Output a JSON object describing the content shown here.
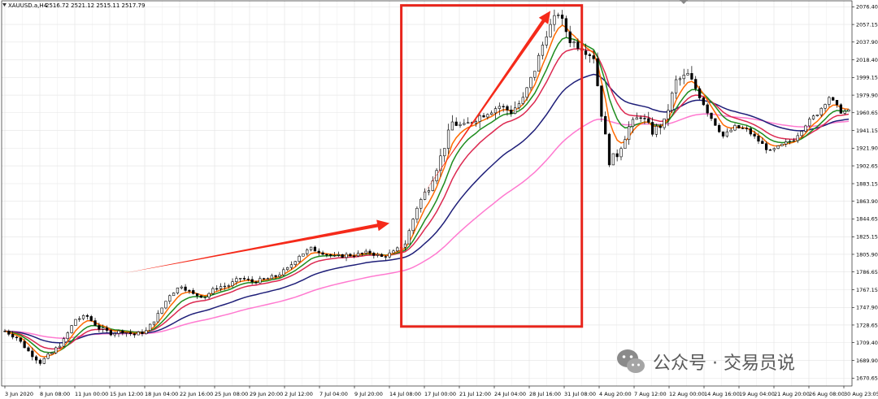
{
  "chart_data": {
    "type": "candlestick",
    "symbol_info": {
      "symbol": "XAUUSD.a,H4",
      "ohlc": "2516.72 2521.12 2515.11 2517.79"
    },
    "price_axis": {
      "ticks": [
        "2076.40",
        "2057.15",
        "2037.90",
        "2018.40",
        "1999.15",
        "1979.90",
        "1960.65",
        "1941.15",
        "1921.90",
        "1902.65",
        "1883.15",
        "1863.90",
        "1844.65",
        "1825.15",
        "1805.90",
        "1786.65",
        "1767.15",
        "1747.90",
        "1728.65",
        "1709.40",
        "1689.90",
        "1670.65"
      ],
      "ylim": [
        1662,
        2083
      ]
    },
    "time_axis": {
      "ticks": [
        "3 Jun 2020",
        "8 Jun 08:00",
        "11 Jun 00:00",
        "15 Jun 12:00",
        "18 Jun 04:00",
        "22 Jun 16:00",
        "25 Jun 08:00",
        "29 Jun 20:00",
        "2 Jul 12:00",
        "7 Jul 04:00",
        "9 Jul 20:00",
        "14 Jul 08:00",
        "17 Jul 00:00",
        "21 Jul 12:00",
        "24 Jul 04:00",
        "28 Jul 16:00",
        "31 Jul 08:00",
        "4 Aug 20:00",
        "7 Aug 12:00",
        "12 Aug 00:00",
        "14 Aug 16:00",
        "19 Aug 04:00",
        "21 Aug 20:00",
        "26 Aug 08:00",
        "30 Aug 23:05"
      ]
    },
    "price_path": [
      [
        0,
        1722
      ],
      [
        3,
        1715
      ],
      [
        6,
        1700
      ],
      [
        9,
        1688
      ],
      [
        12,
        1698
      ],
      [
        15,
        1712
      ],
      [
        18,
        1735
      ],
      [
        21,
        1738
      ],
      [
        24,
        1725
      ],
      [
        27,
        1720
      ],
      [
        30,
        1722
      ],
      [
        33,
        1718
      ],
      [
        36,
        1722
      ],
      [
        39,
        1740
      ],
      [
        42,
        1762
      ],
      [
        45,
        1772
      ],
      [
        48,
        1762
      ],
      [
        51,
        1760
      ],
      [
        54,
        1770
      ],
      [
        57,
        1772
      ],
      [
        60,
        1780
      ],
      [
        63,
        1776
      ],
      [
        66,
        1778
      ],
      [
        69,
        1782
      ],
      [
        72,
        1790
      ],
      [
        75,
        1805
      ],
      [
        78,
        1812
      ],
      [
        81,
        1808
      ],
      [
        84,
        1803
      ],
      [
        87,
        1805
      ],
      [
        90,
        1806
      ],
      [
        93,
        1808
      ],
      [
        96,
        1803
      ],
      [
        99,
        1808
      ],
      [
        102,
        1818
      ],
      [
        105,
        1858
      ],
      [
        108,
        1880
      ],
      [
        111,
        1912
      ],
      [
        114,
        1950
      ],
      [
        117,
        1945
      ],
      [
        120,
        1955
      ],
      [
        123,
        1962
      ],
      [
        126,
        1968
      ],
      [
        129,
        1962
      ],
      [
        132,
        1975
      ],
      [
        135,
        2008
      ],
      [
        138,
        2048
      ],
      [
        141,
        2070
      ],
      [
        144,
        2040
      ],
      [
        147,
        2032
      ],
      [
        150,
        2022
      ],
      [
        152,
        1960
      ],
      [
        154,
        1908
      ],
      [
        156,
        1915
      ],
      [
        159,
        1945
      ],
      [
        162,
        1958
      ],
      [
        165,
        1940
      ],
      [
        168,
        1950
      ],
      [
        171,
        1995
      ],
      [
        174,
        2002
      ],
      [
        177,
        1980
      ],
      [
        180,
        1955
      ],
      [
        183,
        1935
      ],
      [
        186,
        1945
      ],
      [
        189,
        1942
      ],
      [
        192,
        1930
      ],
      [
        195,
        1918
      ],
      [
        198,
        1925
      ],
      [
        201,
        1932
      ],
      [
        204,
        1948
      ],
      [
        207,
        1960
      ],
      [
        210,
        1978
      ],
      [
        213,
        1962
      ]
    ],
    "moving_averages": [
      {
        "period": 5,
        "color": "#ff6a00"
      },
      {
        "period": 9,
        "color": "#1e8c1e"
      },
      {
        "period": 14,
        "color": "#dc2850"
      },
      {
        "period": 30,
        "color": "#1e1e78"
      },
      {
        "period": 60,
        "color": "#ff7ad0"
      }
    ],
    "annotations": [
      {
        "type": "arrow",
        "from": [
          30,
          1785
        ],
        "to": [
          98,
          1840
        ],
        "color": "#f52a1a"
      },
      {
        "type": "arrow",
        "from": [
          106,
          1868
        ],
        "to": [
          139,
          2072
        ],
        "color": "#f52a1a"
      },
      {
        "type": "rectangle",
        "x_range": [
          101,
          147
        ],
        "y_range": [
          1727,
          2078
        ],
        "color": "#e8251c"
      }
    ],
    "grid": true,
    "watermark": "公众号 · 交易员说"
  }
}
